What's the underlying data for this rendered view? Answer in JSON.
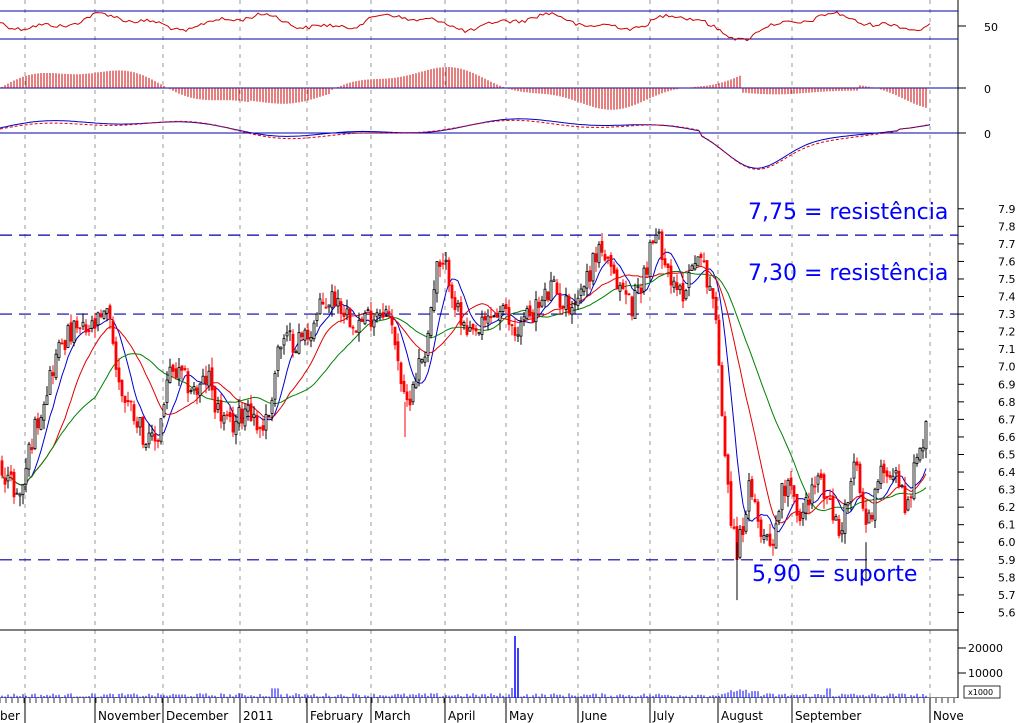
{
  "chart_data": {
    "type": "candlestick",
    "colors": {
      "up": "#000000",
      "down": "#ff0000",
      "ma_short": "#0000cc",
      "ma_mid": "#e00000",
      "ma_long": "#008000",
      "level_line": "#0000aa",
      "annotation": "#0000ff",
      "grid": "#9a9a9a",
      "volume": "#0000ff",
      "histogram": "#cc0000"
    },
    "x_axis": {
      "months": [
        "ber",
        "November",
        "December",
        "2011",
        "February",
        "March",
        "April",
        "May",
        "June",
        "July",
        "August",
        "September",
        "Nove"
      ]
    },
    "price_axis": {
      "range": [
        5.5,
        7.95
      ],
      "ticks": [
        "7.9",
        "7.8",
        "7.7",
        "7.6",
        "7.5",
        "7.4",
        "7.3",
        "7.2",
        "7.1",
        "7.0",
        "6.9",
        "6.8",
        "6.7",
        "6.6",
        "6.5",
        "6.4",
        "6.3",
        "6.2",
        "6.1",
        "6.0",
        "5.9",
        "5.8",
        "5.7",
        "5.6"
      ]
    },
    "levels": [
      {
        "value": 7.75,
        "label": "7,75 = resistência"
      },
      {
        "value": 7.3,
        "label": "7,30 = resistência"
      },
      {
        "value": 5.9,
        "label": "5,90 = suporte"
      }
    ],
    "indicator_panels": [
      {
        "name": "oscillator",
        "tick": "50"
      },
      {
        "name": "histogram",
        "tick": "0"
      },
      {
        "name": "macd",
        "tick": "0"
      }
    ],
    "volume_axis": {
      "ticks": [
        "20000",
        "10000"
      ],
      "unit": "x1000"
    },
    "price_anchors": [
      [
        0,
        6.45
      ],
      [
        10,
        6.35
      ],
      [
        20,
        6.25
      ],
      [
        30,
        6.55
      ],
      [
        40,
        6.75
      ],
      [
        50,
        6.95
      ],
      [
        62,
        7.15
      ],
      [
        75,
        7.2
      ],
      [
        88,
        7.2
      ],
      [
        100,
        7.25
      ],
      [
        110,
        7.3
      ],
      [
        118,
        6.9
      ],
      [
        128,
        6.8
      ],
      [
        138,
        6.7
      ],
      [
        148,
        6.55
      ],
      [
        158,
        6.6
      ],
      [
        168,
        6.95
      ],
      [
        178,
        6.95
      ],
      [
        188,
        6.9
      ],
      [
        198,
        6.85
      ],
      [
        208,
        6.95
      ],
      [
        218,
        6.75
      ],
      [
        228,
        6.65
      ],
      [
        238,
        6.7
      ],
      [
        248,
        6.8
      ],
      [
        258,
        6.65
      ],
      [
        268,
        6.7
      ],
      [
        278,
        7.1
      ],
      [
        288,
        7.15
      ],
      [
        298,
        7.15
      ],
      [
        310,
        7.2
      ],
      [
        322,
        7.35
      ],
      [
        335,
        7.4
      ],
      [
        348,
        7.3
      ],
      [
        360,
        7.25
      ],
      [
        372,
        7.3
      ],
      [
        384,
        7.35
      ],
      [
        396,
        7.15
      ],
      [
        405,
        6.75
      ],
      [
        415,
        6.95
      ],
      [
        425,
        7.1
      ],
      [
        437,
        7.55
      ],
      [
        448,
        7.55
      ],
      [
        458,
        7.3
      ],
      [
        468,
        7.15
      ],
      [
        480,
        7.2
      ],
      [
        492,
        7.3
      ],
      [
        504,
        7.3
      ],
      [
        515,
        7.2
      ],
      [
        528,
        7.3
      ],
      [
        540,
        7.35
      ],
      [
        552,
        7.45
      ],
      [
        565,
        7.35
      ],
      [
        578,
        7.4
      ],
      [
        590,
        7.55
      ],
      [
        600,
        7.7
      ],
      [
        612,
        7.5
      ],
      [
        622,
        7.45
      ],
      [
        632,
        7.35
      ],
      [
        645,
        7.55
      ],
      [
        655,
        7.75
      ],
      [
        665,
        7.65
      ],
      [
        675,
        7.4
      ],
      [
        685,
        7.45
      ],
      [
        695,
        7.65
      ],
      [
        705,
        7.55
      ],
      [
        712,
        7.45
      ],
      [
        718,
        7.1
      ],
      [
        724,
        6.6
      ],
      [
        730,
        6.2
      ],
      [
        736,
        5.95
      ],
      [
        742,
        6.05
      ],
      [
        748,
        6.3
      ],
      [
        756,
        6.15
      ],
      [
        764,
        6.05
      ],
      [
        772,
        6.0
      ],
      [
        780,
        6.25
      ],
      [
        790,
        6.4
      ],
      [
        800,
        6.1
      ],
      [
        810,
        6.3
      ],
      [
        820,
        6.35
      ],
      [
        830,
        6.2
      ],
      [
        840,
        6.05
      ],
      [
        848,
        6.25
      ],
      [
        856,
        6.45
      ],
      [
        866,
        6.05
      ],
      [
        876,
        6.3
      ],
      [
        886,
        6.45
      ],
      [
        896,
        6.4
      ],
      [
        906,
        6.2
      ],
      [
        914,
        6.4
      ],
      [
        920,
        6.5
      ],
      [
        926,
        6.7
      ]
    ]
  }
}
